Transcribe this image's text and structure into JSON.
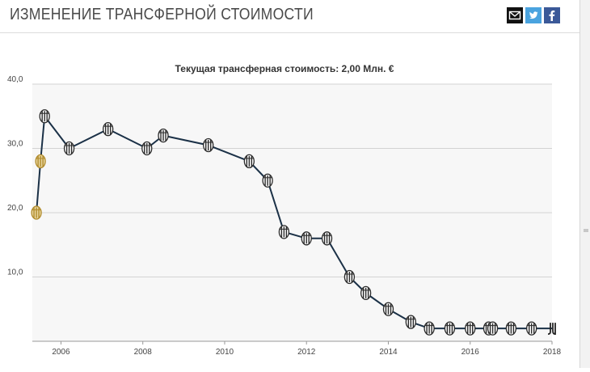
{
  "header": {
    "title": "ИЗМЕНЕНИЕ ТРАНСФЕРНОЙ СТОИМОСТИ",
    "share_icons": [
      "mail-icon",
      "twitter-icon",
      "facebook-icon"
    ]
  },
  "colors": {
    "line": "#1b3147",
    "plot_bg": "#f7f7f7",
    "grid": "#d3d3d3",
    "mail_bg": "#111111",
    "twitter_bg": "#4aa3df",
    "facebook_bg": "#3b5998",
    "marker_dark": "#2a2a2a",
    "marker_gold": "#b08a2a"
  },
  "chart_data": {
    "type": "line",
    "title": "Текущая трансферная стоимость: 2,00 Млн. €",
    "xlabel": "",
    "ylabel": "",
    "ylim": [
      0,
      40
    ],
    "xlim": [
      2005.3,
      2018
    ],
    "y_ticks": [
      10,
      20,
      30,
      40
    ],
    "y_tick_labels": [
      "10,0",
      "20,0",
      "30,0",
      "40,0"
    ],
    "x_ticks": [
      2006,
      2008,
      2010,
      2012,
      2014,
      2016,
      2018
    ],
    "x_tick_labels": [
      "2006",
      "2008",
      "2010",
      "2012",
      "2014",
      "2016",
      "2018"
    ],
    "grid": "horizontal",
    "series": [
      {
        "points": [
          {
            "x": 2005.4,
            "y": 20.0,
            "marker": "gold"
          },
          {
            "x": 2005.5,
            "y": 28.0,
            "marker": "gold"
          },
          {
            "x": 2005.6,
            "y": 35.0,
            "marker": "striped"
          },
          {
            "x": 2006.2,
            "y": 30.0,
            "marker": "striped"
          },
          {
            "x": 2007.15,
            "y": 33.0,
            "marker": "striped"
          },
          {
            "x": 2008.1,
            "y": 30.0,
            "marker": "striped"
          },
          {
            "x": 2008.5,
            "y": 32.0,
            "marker": "striped"
          },
          {
            "x": 2009.6,
            "y": 30.5,
            "marker": "striped"
          },
          {
            "x": 2010.6,
            "y": 28.0,
            "marker": "striped"
          },
          {
            "x": 2011.05,
            "y": 25.0,
            "marker": "striped"
          },
          {
            "x": 2011.45,
            "y": 17.0,
            "marker": "striped"
          },
          {
            "x": 2012.0,
            "y": 16.0,
            "marker": "striped"
          },
          {
            "x": 2012.5,
            "y": 16.0,
            "marker": "striped"
          },
          {
            "x": 2013.05,
            "y": 10.0,
            "marker": "striped"
          },
          {
            "x": 2013.45,
            "y": 7.5,
            "marker": "striped"
          },
          {
            "x": 2014.0,
            "y": 5.0,
            "marker": "striped"
          },
          {
            "x": 2014.55,
            "y": 3.0,
            "marker": "striped"
          },
          {
            "x": 2015.0,
            "y": 2.0,
            "marker": "striped"
          },
          {
            "x": 2015.5,
            "y": 2.0,
            "marker": "striped"
          },
          {
            "x": 2016.0,
            "y": 2.0,
            "marker": "striped"
          },
          {
            "x": 2016.45,
            "y": 2.0,
            "marker": "striped"
          },
          {
            "x": 2016.55,
            "y": 2.0,
            "marker": "striped"
          },
          {
            "x": 2017.0,
            "y": 2.0,
            "marker": "striped"
          },
          {
            "x": 2017.5,
            "y": 2.0,
            "marker": "striped"
          },
          {
            "x": 2018.0,
            "y": 2.0,
            "marker": "new-logo"
          }
        ]
      }
    ]
  }
}
